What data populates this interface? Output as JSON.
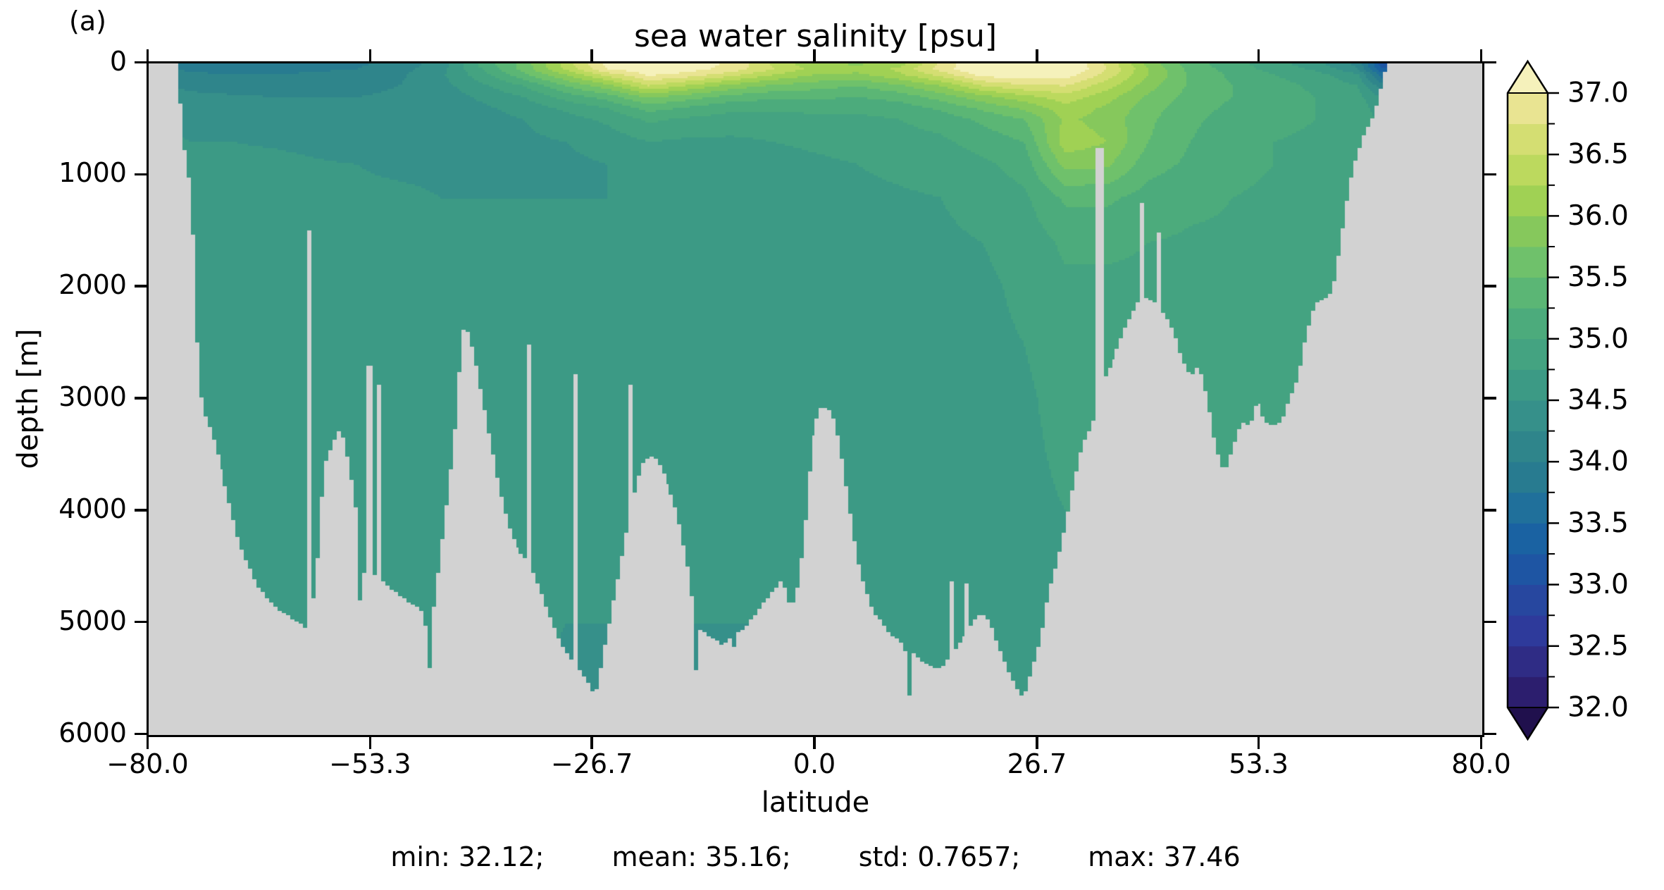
{
  "panel_label": "(a)",
  "title": "sea water salinity [psu]",
  "xlabel": "latitude",
  "ylabel": "depth [m]",
  "stats": {
    "items": [
      "min: 32.12;",
      "mean: 35.16;",
      "std: 0.7657;",
      "max: 37.46"
    ]
  },
  "axes": {
    "x_range": [
      -80,
      80
    ],
    "x_ticks": [
      -80.0,
      -53.3,
      -26.7,
      0.0,
      26.7,
      53.3,
      80.0
    ],
    "x_tick_labels": [
      "−80.0",
      "−53.3",
      "−26.7",
      "0.0",
      "26.7",
      "53.3",
      "80.0"
    ],
    "y_range": [
      0,
      6000
    ],
    "y_ticks": [
      0,
      1000,
      2000,
      3000,
      4000,
      5000,
      6000
    ],
    "y_tick_labels": [
      "0",
      "1000",
      "2000",
      "3000",
      "4000",
      "5000",
      "6000"
    ]
  },
  "colors": {
    "land": "#d2d2d2",
    "spine": "#000000",
    "background": "#ffffff"
  },
  "colorbar": {
    "vmin": 32.0,
    "vmax": 37.0,
    "major_ticks": [
      37.0,
      36.5,
      36.0,
      35.5,
      35.0,
      34.5,
      34.0,
      33.5,
      33.0,
      32.5,
      32.0
    ],
    "tick_labels": [
      "37.0",
      "36.5",
      "36.0",
      "35.5",
      "35.0",
      "34.5",
      "34.0",
      "33.5",
      "33.0",
      "32.5",
      "32.0"
    ],
    "minor_ticks": [
      36.75,
      36.25,
      35.75,
      35.25,
      34.75,
      34.25,
      33.75,
      33.25,
      32.75,
      32.25
    ],
    "extend": "both",
    "under_color": "#20104d",
    "over_color": "#f5f1bb",
    "palette": [
      "#2c1e6e",
      "#2f2c85",
      "#2e3a9b",
      "#27479f",
      "#1e55a3",
      "#1a62a2",
      "#20709b",
      "#287b90",
      "#2f858b",
      "#36908a",
      "#3c9a85",
      "#44a381",
      "#4cab7c",
      "#5bb675",
      "#6fc16b",
      "#86c85c",
      "#a0d154",
      "#bcd95e",
      "#d4de72",
      "#e9e492"
    ]
  },
  "chart_data": {
    "type": "heatmap",
    "title": "sea water salinity [psu]",
    "xlabel": "latitude",
    "ylabel": "depth [m]",
    "x_range": [
      -80,
      80
    ],
    "y_range": [
      0,
      6000
    ],
    "levels": {
      "min": 32.0,
      "max": 37.0,
      "step": 0.25
    },
    "stats": {
      "min": 32.12,
      "mean": 35.16,
      "std": 0.7657,
      "max": 37.46
    },
    "grid": {
      "lats": [
        -80,
        -75,
        -70,
        -65,
        -60,
        -55,
        -50,
        -45,
        -40,
        -35,
        -30,
        -25,
        -20,
        -15,
        -10,
        -5,
        0,
        5,
        10,
        15,
        20,
        25,
        30,
        35,
        40,
        45,
        50,
        55,
        60,
        65,
        68,
        80
      ],
      "depths": [
        0,
        50,
        100,
        200,
        300,
        400,
        500,
        700,
        900,
        1200,
        1600,
        2000,
        3000,
        4000,
        5000,
        6000
      ],
      "salinity": [
        [
          34.1,
          34.1,
          34.15,
          34.3,
          34.4,
          34.45,
          34.5,
          34.55,
          34.6,
          34.62,
          34.65,
          34.65,
          34.65,
          34.65,
          34.65,
          34.65
        ],
        [
          33.9,
          33.95,
          34.05,
          34.2,
          34.3,
          34.4,
          34.45,
          34.5,
          34.58,
          34.62,
          34.65,
          34.65,
          34.65,
          34.65,
          34.65,
          34.65
        ],
        [
          33.85,
          33.9,
          34.0,
          34.15,
          34.28,
          34.35,
          34.4,
          34.5,
          34.55,
          34.6,
          34.65,
          34.65,
          34.65,
          34.65,
          34.65,
          34.65
        ],
        [
          33.85,
          33.9,
          34.0,
          34.15,
          34.25,
          34.35,
          34.4,
          34.48,
          34.55,
          34.6,
          34.63,
          34.65,
          34.65,
          34.65,
          34.65,
          34.65
        ],
        [
          33.9,
          33.95,
          34.05,
          34.15,
          34.25,
          34.3,
          34.35,
          34.45,
          34.52,
          34.58,
          34.63,
          34.65,
          34.65,
          34.65,
          34.6,
          34.6
        ],
        [
          33.95,
          34.0,
          34.1,
          34.2,
          34.25,
          34.3,
          34.35,
          34.4,
          34.5,
          34.55,
          34.6,
          34.65,
          34.65,
          34.65,
          34.6,
          34.6
        ],
        [
          34.1,
          34.15,
          34.2,
          34.25,
          34.28,
          34.3,
          34.35,
          34.4,
          34.45,
          34.55,
          34.6,
          34.62,
          34.65,
          34.65,
          34.6,
          34.55
        ],
        [
          34.35,
          34.4,
          34.45,
          34.4,
          34.35,
          34.35,
          34.35,
          34.4,
          34.45,
          34.5,
          34.55,
          34.6,
          34.65,
          34.65,
          34.6,
          34.55
        ],
        [
          35.1,
          35.0,
          34.9,
          34.7,
          34.55,
          34.45,
          34.4,
          34.4,
          34.45,
          34.5,
          34.55,
          34.6,
          34.65,
          34.65,
          34.6,
          34.5
        ],
        [
          35.6,
          35.6,
          35.45,
          35.0,
          34.75,
          34.6,
          34.5,
          34.45,
          34.45,
          34.5,
          34.55,
          34.6,
          34.65,
          34.6,
          34.55,
          34.5
        ],
        [
          36.35,
          36.3,
          36.0,
          35.5,
          35.1,
          34.8,
          34.65,
          34.5,
          34.45,
          34.5,
          34.55,
          34.6,
          34.65,
          34.6,
          34.5,
          34.45
        ],
        [
          37.1,
          37.0,
          36.6,
          35.9,
          35.35,
          35.0,
          34.8,
          34.6,
          34.5,
          34.5,
          34.55,
          34.6,
          34.65,
          34.6,
          34.5,
          34.45
        ],
        [
          37.25,
          37.2,
          37.05,
          36.5,
          35.8,
          35.35,
          35.05,
          34.75,
          34.6,
          34.5,
          34.55,
          34.6,
          34.6,
          34.6,
          34.5,
          34.45
        ],
        [
          37.15,
          37.1,
          36.9,
          36.2,
          35.6,
          35.2,
          34.95,
          34.7,
          34.6,
          34.55,
          34.55,
          34.6,
          34.6,
          34.6,
          34.5,
          34.45
        ],
        [
          36.95,
          36.9,
          36.6,
          35.9,
          35.4,
          35.05,
          34.9,
          34.7,
          34.6,
          34.55,
          34.6,
          34.6,
          34.6,
          34.6,
          34.5,
          34.45
        ],
        [
          36.45,
          36.5,
          36.25,
          35.7,
          35.3,
          35.05,
          34.9,
          34.75,
          34.65,
          34.6,
          34.6,
          34.6,
          34.6,
          34.6,
          34.5,
          34.45
        ],
        [
          36.05,
          36.15,
          36.0,
          35.6,
          35.3,
          35.05,
          34.95,
          34.8,
          34.7,
          34.65,
          34.65,
          34.65,
          34.65,
          34.6,
          34.55,
          34.5
        ],
        [
          35.95,
          36.1,
          35.95,
          35.5,
          35.25,
          35.05,
          34.95,
          34.85,
          34.75,
          34.7,
          34.65,
          34.65,
          34.65,
          34.6,
          34.55,
          34.5
        ],
        [
          36.1,
          36.3,
          36.2,
          35.7,
          35.35,
          35.1,
          35.0,
          34.9,
          34.8,
          34.72,
          34.68,
          34.65,
          34.65,
          34.6,
          34.55,
          34.5
        ],
        [
          36.8,
          36.85,
          36.6,
          36.0,
          35.6,
          35.3,
          35.1,
          34.95,
          34.85,
          34.75,
          34.7,
          34.68,
          34.65,
          34.62,
          34.55,
          34.5
        ],
        [
          37.3,
          37.3,
          37.1,
          36.5,
          35.9,
          35.55,
          35.3,
          35.1,
          34.95,
          34.85,
          34.75,
          34.7,
          34.68,
          34.65,
          34.6,
          34.55
        ],
        [
          37.35,
          37.35,
          37.2,
          36.7,
          36.15,
          35.8,
          35.5,
          35.25,
          35.1,
          34.95,
          34.85,
          34.8,
          34.7,
          34.68,
          34.62,
          34.6
        ],
        [
          37.3,
          37.3,
          37.15,
          36.75,
          36.4,
          36.15,
          36.05,
          36.15,
          35.85,
          35.3,
          35.05,
          34.95,
          34.85,
          34.75,
          34.65,
          34.6
        ],
        [
          36.7,
          36.75,
          36.65,
          36.35,
          36.1,
          35.95,
          35.9,
          36.0,
          35.8,
          35.3,
          35.05,
          34.95,
          34.85,
          34.75,
          34.65,
          34.6
        ],
        [
          35.9,
          36.0,
          36.0,
          35.85,
          35.7,
          35.6,
          35.55,
          35.5,
          35.35,
          35.15,
          35.0,
          34.95,
          34.9,
          34.8,
          34.7,
          34.65
        ],
        [
          35.35,
          35.4,
          35.45,
          35.45,
          35.4,
          35.35,
          35.3,
          35.25,
          35.2,
          35.05,
          34.97,
          34.95,
          34.9,
          34.8,
          34.7,
          34.65
        ],
        [
          35.1,
          35.15,
          35.2,
          35.25,
          35.25,
          35.2,
          35.15,
          35.1,
          35.05,
          35.0,
          34.97,
          34.95,
          34.9,
          34.85,
          34.75,
          34.7
        ],
        [
          34.85,
          34.9,
          35.0,
          35.1,
          35.1,
          35.1,
          35.05,
          35.0,
          35.0,
          34.97,
          34.95,
          34.93,
          34.9,
          34.85,
          34.8,
          34.75
        ],
        [
          34.6,
          34.7,
          34.85,
          34.95,
          35.0,
          35.0,
          35.0,
          34.97,
          34.95,
          34.93,
          34.9,
          34.9,
          34.88,
          34.85,
          34.8,
          34.78
        ],
        [
          34.15,
          34.3,
          34.55,
          34.75,
          34.85,
          34.9,
          34.9,
          34.9,
          34.9,
          34.9,
          34.88,
          34.85,
          34.85,
          34.85,
          34.8,
          34.8
        ],
        [
          33.1,
          33.3,
          33.6,
          34.1,
          34.45,
          34.6,
          34.7,
          34.8,
          34.85,
          34.85,
          34.85,
          34.85,
          34.85,
          34.85,
          34.8,
          34.8
        ],
        [
          33.1,
          33.3,
          33.6,
          34.1,
          34.45,
          34.6,
          34.7,
          34.8,
          34.85,
          34.85,
          34.85,
          34.85,
          34.85,
          34.85,
          34.8,
          34.8
        ]
      ]
    },
    "bathymetry": [
      [
        -80,
        0
      ],
      [
        -76.6,
        0
      ],
      [
        -76.2,
        400
      ],
      [
        -75.6,
        900
      ],
      [
        -75,
        1100
      ],
      [
        -74.6,
        1800
      ],
      [
        -74.2,
        2600
      ],
      [
        -73.6,
        3100
      ],
      [
        -72.5,
        3300
      ],
      [
        -71,
        3700
      ],
      [
        -69,
        4300
      ],
      [
        -67,
        4650
      ],
      [
        -65,
        4850
      ],
      [
        -63,
        4950
      ],
      [
        -61,
        5050
      ],
      [
        -60,
        4700
      ],
      [
        -59,
        3600
      ],
      [
        -58,
        3400
      ],
      [
        -57,
        3250
      ],
      [
        -56,
        3600
      ],
      [
        -55,
        4100
      ],
      [
        -54.8,
        4550
      ],
      [
        -54.6,
        5550
      ],
      [
        -54.3,
        4550
      ],
      [
        -53,
        4550
      ],
      [
        -52,
        4600
      ],
      [
        -50,
        4750
      ],
      [
        -48,
        4850
      ],
      [
        -47,
        4900
      ],
      [
        -46.7,
        5050
      ],
      [
        -46.4,
        5650
      ],
      [
        -46,
        5000
      ],
      [
        -45,
        4400
      ],
      [
        -44,
        3800
      ],
      [
        -43,
        3100
      ],
      [
        -42.5,
        2400
      ],
      [
        -42,
        2350
      ],
      [
        -41.5,
        2450
      ],
      [
        -41,
        2600
      ],
      [
        -40,
        3000
      ],
      [
        -39,
        3400
      ],
      [
        -38,
        3800
      ],
      [
        -37,
        4100
      ],
      [
        -36,
        4300
      ],
      [
        -35,
        4400
      ],
      [
        -34,
        4500
      ],
      [
        -33,
        4700
      ],
      [
        -32,
        4900
      ],
      [
        -31,
        5100
      ],
      [
        -30,
        5250
      ],
      [
        -29,
        5350
      ],
      [
        -28,
        5450
      ],
      [
        -27,
        5550
      ],
      [
        -26.5,
        5680
      ],
      [
        -26,
        5500
      ],
      [
        -25,
        5100
      ],
      [
        -24,
        4700
      ],
      [
        -23,
        4300
      ],
      [
        -22,
        3900
      ],
      [
        -21,
        3600
      ],
      [
        -20,
        3500
      ],
      [
        -19,
        3550
      ],
      [
        -18,
        3700
      ],
      [
        -17,
        3900
      ],
      [
        -16,
        4200
      ],
      [
        -15,
        4600
      ],
      [
        -14.4,
        5000
      ],
      [
        -14.2,
        5550
      ],
      [
        -14,
        5050
      ],
      [
        -13,
        5100
      ],
      [
        -12,
        5150
      ],
      [
        -11,
        5200
      ],
      [
        -9.8,
        5100
      ],
      [
        -9.6,
        5550
      ],
      [
        -9.4,
        5100
      ],
      [
        -8,
        5000
      ],
      [
        -7,
        4900
      ],
      [
        -6,
        4800
      ],
      [
        -5,
        4700
      ],
      [
        -4,
        4600
      ],
      [
        -3,
        4900
      ],
      [
        -2,
        4600
      ],
      [
        -1,
        3900
      ],
      [
        -0.5,
        3400
      ],
      [
        0,
        3250
      ],
      [
        0.5,
        3080
      ],
      [
        1,
        3060
      ],
      [
        2,
        3100
      ],
      [
        3,
        3400
      ],
      [
        4,
        3900
      ],
      [
        5,
        4400
      ],
      [
        6,
        4700
      ],
      [
        7,
        4900
      ],
      [
        8,
        5000
      ],
      [
        9,
        5100
      ],
      [
        10,
        5150
      ],
      [
        10.8,
        5250
      ],
      [
        11.2,
        5700
      ],
      [
        11.6,
        5250
      ],
      [
        12,
        5300
      ],
      [
        13,
        5350
      ],
      [
        14,
        5400
      ],
      [
        15,
        5400
      ],
      [
        16,
        5300
      ],
      [
        17,
        5200
      ],
      [
        18,
        5100
      ],
      [
        19,
        5000
      ],
      [
        20,
        4900
      ],
      [
        21,
        5000
      ],
      [
        22,
        5200
      ],
      [
        23,
        5400
      ],
      [
        24,
        5550
      ],
      [
        25,
        5680
      ],
      [
        26,
        5400
      ],
      [
        27,
        5150
      ],
      [
        28,
        4700
      ],
      [
        29,
        4450
      ],
      [
        30,
        4100
      ],
      [
        31,
        3730
      ],
      [
        32,
        3400
      ],
      [
        33,
        3250
      ],
      [
        33.5,
        3150
      ],
      [
        34.5,
        2850
      ],
      [
        35,
        2750
      ],
      [
        36,
        2600
      ],
      [
        37,
        2400
      ],
      [
        38,
        2250
      ],
      [
        39,
        2100
      ],
      [
        40,
        2100
      ],
      [
        41,
        2150
      ],
      [
        42,
        2250
      ],
      [
        43,
        2400
      ],
      [
        44,
        2650
      ],
      [
        45,
        2800
      ],
      [
        46,
        2700
      ],
      [
        47,
        3000
      ],
      [
        48,
        3450
      ],
      [
        49,
        3650
      ],
      [
        50,
        3450
      ],
      [
        51,
        3200
      ],
      [
        52,
        3250
      ],
      [
        53,
        3000
      ],
      [
        54,
        3200
      ],
      [
        55,
        3250
      ],
      [
        56,
        3200
      ],
      [
        57,
        3000
      ],
      [
        58,
        2800
      ],
      [
        59,
        2400
      ],
      [
        60,
        2150
      ],
      [
        61,
        2100
      ],
      [
        62,
        2050
      ],
      [
        63,
        1600
      ],
      [
        64,
        1100
      ],
      [
        65,
        800
      ],
      [
        66,
        600
      ],
      [
        67,
        450
      ],
      [
        68,
        150
      ],
      [
        68.5,
        0
      ],
      [
        80,
        0
      ]
    ],
    "seamounts": [
      [
        -60.6,
        1500,
        0.26
      ],
      [
        -53.5,
        2700,
        0.26
      ],
      [
        -52.2,
        2870,
        0.3
      ],
      [
        -34.2,
        2520,
        0.26
      ],
      [
        -28.8,
        2780,
        0.26
      ],
      [
        -22.3,
        2870,
        0.4
      ],
      [
        16.3,
        4620,
        0.3
      ],
      [
        18.4,
        4650,
        0.3
      ],
      [
        34.0,
        760,
        0.26
      ],
      [
        39.3,
        1250,
        0.26
      ],
      [
        41.3,
        1520,
        0.3
      ]
    ]
  }
}
